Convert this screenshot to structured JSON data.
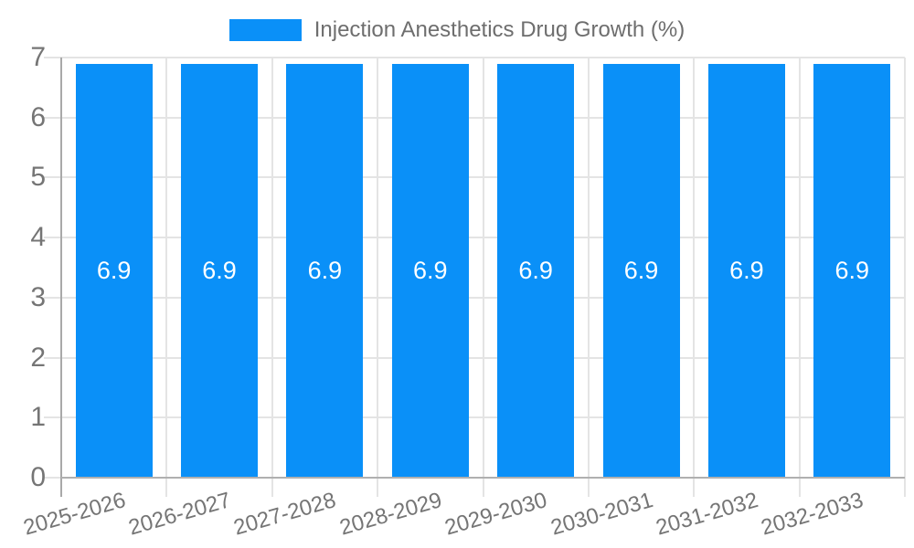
{
  "legend": {
    "label": "Injection Anesthetics Drug Growth (%)",
    "swatch_color": "#0a90f8"
  },
  "chart_data": {
    "type": "bar",
    "title": "Injection Anesthetics Drug Growth (%)",
    "categories": [
      "2025-2026",
      "2026-2027",
      "2027-2028",
      "2028-2029",
      "2029-2030",
      "2030-2031",
      "2031-2032",
      "2032-2033"
    ],
    "values": [
      6.9,
      6.9,
      6.9,
      6.9,
      6.9,
      6.9,
      6.9,
      6.9
    ],
    "xlabel": "",
    "ylabel": "",
    "ylim": [
      0,
      7
    ],
    "yticks": [
      0,
      1,
      2,
      3,
      4,
      5,
      6,
      7
    ],
    "grid": true,
    "legend_position": "top-center",
    "x_tick_rotation_deg": -16,
    "colors": {
      "bar": "#0a90f8",
      "gridline": "#e4e4e4",
      "axis_line": "#a9a9a9",
      "baseline": "#b0b0b0",
      "tick_label": "#757575",
      "legend_text": "#6e6e6e",
      "value_label": "#ffffff",
      "background": "#ffffff"
    }
  }
}
